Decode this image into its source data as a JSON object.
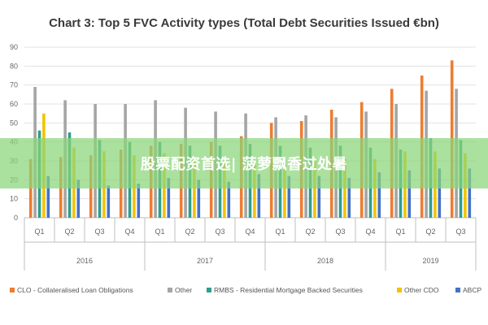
{
  "overlay": {
    "text": "股票配资首选| 菠萝飘香过处暑"
  },
  "chart_data": {
    "type": "bar",
    "title": "Chart 3: Top 5 FVC Activity types (Total Debt Securities Issued €bn)",
    "ylim": [
      0,
      90
    ],
    "yticks": [
      0,
      10,
      20,
      30,
      40,
      50,
      60,
      70,
      80,
      90
    ],
    "grid": true,
    "legend_position": "bottom",
    "categories": [
      "Q1",
      "Q2",
      "Q3",
      "Q4",
      "Q1",
      "Q2",
      "Q3",
      "Q4",
      "Q1",
      "Q2",
      "Q3",
      "Q4",
      "Q1",
      "Q2",
      "Q3"
    ],
    "groups": [
      {
        "label": "2016",
        "count": 4
      },
      {
        "label": "2017",
        "count": 4
      },
      {
        "label": "2018",
        "count": 4
      },
      {
        "label": "2019",
        "count": 3
      }
    ],
    "series": [
      {
        "name": "CLO - Collateralised Loan Obligations",
        "color": "#ED7D31",
        "values": [
          31,
          32,
          33,
          36,
          38,
          39,
          40,
          43,
          50,
          51,
          57,
          61,
          68,
          75,
          83
        ]
      },
      {
        "name": "Other",
        "color": "#A5A5A5",
        "values": [
          69,
          62,
          60,
          60,
          62,
          58,
          56,
          55,
          53,
          54,
          53,
          56,
          60,
          67,
          68
        ]
      },
      {
        "name": "RMBS - Residential Mortgage Backed Securities",
        "color": "#2E9E8E",
        "values": [
          46,
          45,
          41,
          40,
          40,
          38,
          38,
          39,
          38,
          37,
          38,
          37,
          36,
          42,
          41
        ]
      },
      {
        "name": "Other CDO",
        "color": "#F2C300",
        "values": [
          55,
          37,
          35,
          33,
          34,
          31,
          30,
          29,
          29,
          30,
          31,
          31,
          35,
          35,
          34
        ]
      },
      {
        "name": "ABCP",
        "color": "#4472C4",
        "values": [
          22,
          20,
          17,
          18,
          21,
          20,
          19,
          23,
          22,
          22,
          21,
          24,
          25,
          26,
          26
        ]
      }
    ]
  }
}
